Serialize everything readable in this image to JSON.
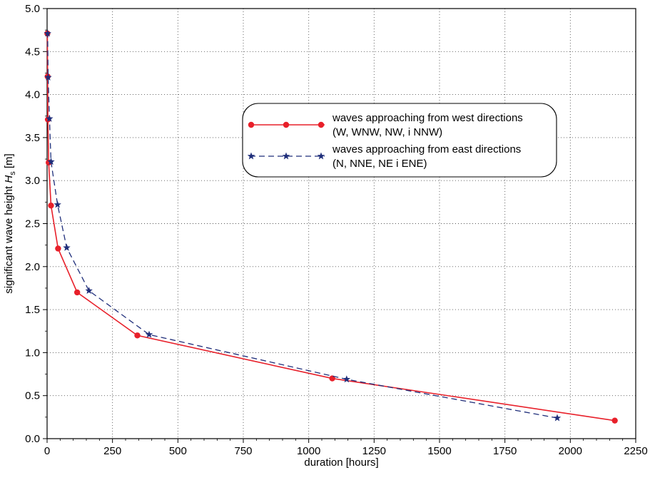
{
  "chart_data": {
    "type": "line",
    "xlabel": "duration [hours]",
    "ylabel_prefix": "significant wave height ",
    "ylabel_var": "H",
    "ylabel_sub": "s",
    "ylabel_suffix": " [m]",
    "xlim": [
      0,
      2250
    ],
    "ylim": [
      0,
      5
    ],
    "x_ticks": [
      0,
      250,
      500,
      750,
      1000,
      1250,
      1500,
      1750,
      2000,
      2250
    ],
    "y_ticks": [
      0.0,
      0.5,
      1.0,
      1.5,
      2.0,
      2.5,
      3.0,
      3.5,
      4.0,
      4.5,
      5.0
    ],
    "grid": true,
    "legend_position": "upper-right",
    "series": [
      {
        "name_line1": "waves approaching from west directions",
        "name_line2": "(W, WNW, NW, i NNW)",
        "color": "#e8202a",
        "line_style": "solid",
        "marker": "circle",
        "x": [
          2170,
          1090,
          345,
          115,
          42,
          15,
          6,
          3,
          2,
          1
        ],
        "y": [
          0.21,
          0.7,
          1.2,
          1.7,
          2.21,
          2.71,
          3.21,
          3.71,
          4.21,
          4.71
        ]
      },
      {
        "name_line1": "waves approaching from east directions",
        "name_line2": "(N, NNE, NE i ENE)",
        "color": "#1f2e7a",
        "line_style": "dashed",
        "marker": "star",
        "x": [
          1950,
          1145,
          390,
          160,
          75,
          40,
          15,
          9,
          4,
          2
        ],
        "y": [
          0.24,
          0.69,
          1.21,
          1.72,
          2.22,
          2.72,
          3.22,
          3.72,
          4.2,
          4.71
        ]
      }
    ]
  }
}
